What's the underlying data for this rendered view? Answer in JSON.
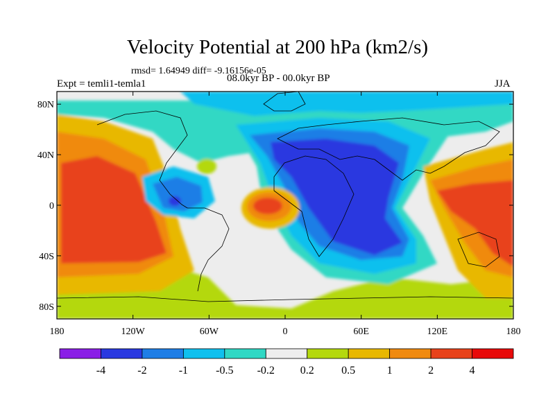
{
  "title": "Velocity Potential at 200 hPa (km2/s)",
  "stats": "rmsd= 1.64949 diff= -9.16156e-05",
  "experiment": "Expt = temli1-temla1",
  "period": "08.0kyr BP - 00.0kyr BP",
  "season": "JJA",
  "y_axis": {
    "ticks": [
      {
        "label": "80N",
        "lat": 80
      },
      {
        "label": "40N",
        "lat": 40
      },
      {
        "label": "0",
        "lat": 0
      },
      {
        "label": "40S",
        "lat": -40
      },
      {
        "label": "80S",
        "lat": -80
      }
    ]
  },
  "x_axis": {
    "ticks": [
      {
        "label": "180",
        "lon": -180
      },
      {
        "label": "120W",
        "lon": -120
      },
      {
        "label": "60W",
        "lon": -60
      },
      {
        "label": "0",
        "lon": 0
      },
      {
        "label": "60E",
        "lon": 60
      },
      {
        "label": "120E",
        "lon": 120
      },
      {
        "label": "180",
        "lon": 180
      }
    ]
  },
  "colorbar": {
    "colors": [
      "#8a1ee6",
      "#2a39e0",
      "#1e7ee6",
      "#10c0ee",
      "#30d8c4",
      "#ededed",
      "#b4d80e",
      "#e8b800",
      "#f08a10",
      "#e8421a",
      "#e80a0a"
    ],
    "labels": [
      "-4",
      "-2",
      "-1",
      "-0.5",
      "-0.2",
      "0.2",
      "0.5",
      "1",
      "2",
      "4"
    ]
  }
}
